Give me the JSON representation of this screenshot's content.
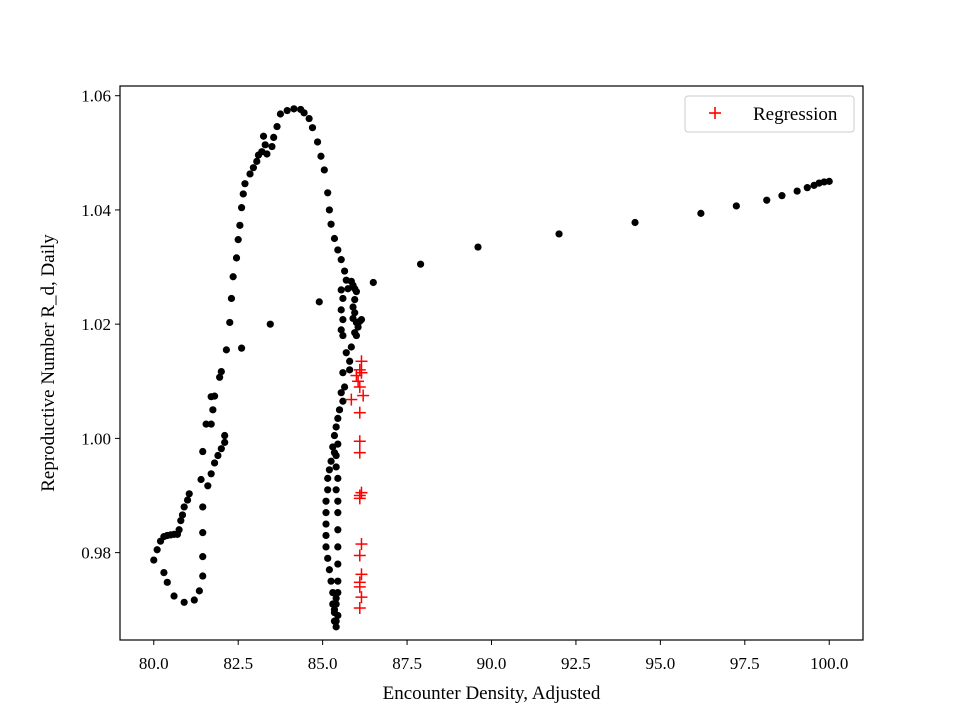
{
  "chart_data": {
    "type": "scatter",
    "title": "",
    "xlabel": "Encounter Density, Adjusted",
    "ylabel": "Reproductive Number R_d, Daily",
    "xlim": [
      79.0,
      101.0
    ],
    "ylim": [
      0.9647,
      1.0617
    ],
    "xticks": [
      80.0,
      82.5,
      85.0,
      87.5,
      90.0,
      92.5,
      95.0,
      97.5,
      100.0
    ],
    "xtick_labels": [
      "80.0",
      "82.5",
      "85.0",
      "87.5",
      "90.0",
      "92.5",
      "95.0",
      "97.5",
      "100.0"
    ],
    "yticks": [
      0.98,
      1.0,
      1.02,
      1.04,
      1.06
    ],
    "ytick_labels": [
      "0.98",
      "1.00",
      "1.02",
      "1.04",
      "1.06"
    ],
    "grid": false,
    "legend": {
      "position": "top-right",
      "entries": [
        {
          "label": "Regression",
          "marker": "+",
          "color": "#ff0000"
        }
      ]
    },
    "series": [
      {
        "marker": "dot",
        "color": "#000000",
        "points": [
          [
            80.0,
            0.9787
          ],
          [
            80.1,
            0.9805
          ],
          [
            80.2,
            0.982
          ],
          [
            80.3,
            0.9828
          ],
          [
            80.4,
            0.983
          ],
          [
            80.5,
            0.9831
          ],
          [
            80.6,
            0.9832
          ],
          [
            80.7,
            0.9832
          ],
          [
            80.75,
            0.984
          ],
          [
            80.8,
            0.9856
          ],
          [
            80.85,
            0.9866
          ],
          [
            80.9,
            0.988
          ],
          [
            81.0,
            0.9892
          ],
          [
            81.05,
            0.9903
          ],
          [
            80.3,
            0.9765
          ],
          [
            80.4,
            0.9748
          ],
          [
            80.6,
            0.9724
          ],
          [
            80.9,
            0.9713
          ],
          [
            81.2,
            0.9717
          ],
          [
            81.35,
            0.9733
          ],
          [
            81.45,
            0.9759
          ],
          [
            81.45,
            0.9793
          ],
          [
            81.45,
            0.9835
          ],
          [
            81.45,
            0.988
          ],
          [
            81.4,
            0.9928
          ],
          [
            81.45,
            0.9977
          ],
          [
            81.6,
            0.9917
          ],
          [
            81.7,
            0.9938
          ],
          [
            81.8,
            0.9957
          ],
          [
            81.9,
            0.997
          ],
          [
            82.0,
            0.9982
          ],
          [
            82.1,
            0.9993
          ],
          [
            82.1,
            1.0005
          ],
          [
            81.55,
            1.0025
          ],
          [
            81.7,
            1.0025
          ],
          [
            81.75,
            1.005
          ],
          [
            81.7,
            1.0073
          ],
          [
            81.8,
            1.0074
          ],
          [
            81.95,
            1.0107
          ],
          [
            82.0,
            1.0117
          ],
          [
            82.15,
            1.0155
          ],
          [
            82.25,
            1.0203
          ],
          [
            82.3,
            1.0245
          ],
          [
            82.35,
            1.0283
          ],
          [
            82.45,
            1.0316
          ],
          [
            82.5,
            1.0348
          ],
          [
            82.55,
            1.0373
          ],
          [
            82.6,
            1.0404
          ],
          [
            82.65,
            1.0428
          ],
          [
            82.7,
            1.0446
          ],
          [
            82.85,
            1.0463
          ],
          [
            82.95,
            1.0474
          ],
          [
            83.05,
            1.0485
          ],
          [
            83.1,
            1.0496
          ],
          [
            83.2,
            1.0502
          ],
          [
            83.3,
            1.0514
          ],
          [
            83.35,
            1.0498
          ],
          [
            83.25,
            1.0529
          ],
          [
            83.5,
            1.0511
          ],
          [
            83.55,
            1.0527
          ],
          [
            83.65,
            1.0546
          ],
          [
            83.75,
            1.0568
          ],
          [
            83.95,
            1.0574
          ],
          [
            84.15,
            1.0577
          ],
          [
            84.35,
            1.0576
          ],
          [
            84.45,
            1.057
          ],
          [
            84.6,
            1.056
          ],
          [
            84.7,
            1.0544
          ],
          [
            84.85,
            1.0519
          ],
          [
            84.95,
            1.0494
          ],
          [
            85.05,
            1.047
          ],
          [
            85.15,
            1.043
          ],
          [
            85.2,
            1.04
          ],
          [
            85.25,
            1.0375
          ],
          [
            85.35,
            1.035
          ],
          [
            85.45,
            1.033
          ],
          [
            85.55,
            1.0313
          ],
          [
            85.65,
            1.0293
          ],
          [
            85.7,
            1.0277
          ],
          [
            85.75,
            1.0262
          ],
          [
            86.5,
            1.0273
          ],
          [
            87.9,
            1.0305
          ],
          [
            89.6,
            1.0335
          ],
          [
            92.0,
            1.0358
          ],
          [
            94.25,
            1.0378
          ],
          [
            96.2,
            1.0394
          ],
          [
            97.25,
            1.0407
          ],
          [
            98.15,
            1.0417
          ],
          [
            98.6,
            1.0425
          ],
          [
            99.05,
            1.0433
          ],
          [
            99.35,
            1.0439
          ],
          [
            99.55,
            1.0443
          ],
          [
            99.7,
            1.0447
          ],
          [
            99.85,
            1.0449
          ],
          [
            100.0,
            1.045
          ],
          [
            83.45,
            1.02
          ],
          [
            82.6,
            1.0158
          ],
          [
            84.9,
            1.0239
          ],
          [
            85.55,
            1.026
          ],
          [
            85.6,
            1.0245
          ],
          [
            85.55,
            1.0225
          ],
          [
            85.6,
            1.0208
          ],
          [
            85.55,
            1.019
          ],
          [
            85.6,
            1.018
          ],
          [
            85.85,
            1.0275
          ],
          [
            85.9,
            1.0268
          ],
          [
            85.95,
            1.0262
          ],
          [
            86.0,
            1.0257
          ],
          [
            85.95,
            1.0243
          ],
          [
            85.9,
            1.023
          ],
          [
            85.95,
            1.022
          ],
          [
            85.9,
            1.021
          ],
          [
            86.0,
            1.0203
          ],
          [
            86.1,
            1.0205
          ],
          [
            86.15,
            1.0208
          ],
          [
            86.05,
            1.0195
          ],
          [
            85.95,
            1.0185
          ],
          [
            86.0,
            1.018
          ],
          [
            85.85,
            1.016
          ],
          [
            85.7,
            1.015
          ],
          [
            85.8,
            1.0135
          ],
          [
            85.8,
            1.012
          ],
          [
            85.6,
            1.0115
          ],
          [
            85.65,
            1.009
          ],
          [
            85.55,
            1.008
          ],
          [
            85.6,
            1.0065
          ],
          [
            85.5,
            1.005
          ],
          [
            85.45,
            1.0035
          ],
          [
            85.4,
            1.002
          ],
          [
            85.35,
            1.0005
          ],
          [
            85.3,
            0.9985
          ],
          [
            85.35,
            0.9975
          ],
          [
            85.25,
            0.996
          ],
          [
            85.2,
            0.9945
          ],
          [
            85.15,
            0.993
          ],
          [
            85.15,
            0.991
          ],
          [
            85.1,
            0.989
          ],
          [
            85.1,
            0.987
          ],
          [
            85.1,
            0.985
          ],
          [
            85.1,
            0.983
          ],
          [
            85.1,
            0.981
          ],
          [
            85.15,
            0.979
          ],
          [
            85.2,
            0.977
          ],
          [
            85.25,
            0.975
          ],
          [
            85.3,
            0.973
          ],
          [
            85.3,
            0.971
          ],
          [
            85.35,
            0.9695
          ],
          [
            85.35,
            0.968
          ],
          [
            85.4,
            0.967
          ],
          [
            85.45,
            0.969
          ],
          [
            85.4,
            0.971
          ],
          [
            85.45,
            0.973
          ],
          [
            85.45,
            0.975
          ],
          [
            85.45,
            0.978
          ],
          [
            85.45,
            0.981
          ],
          [
            85.45,
            0.984
          ],
          [
            85.45,
            0.987
          ],
          [
            85.45,
            0.989
          ],
          [
            85.4,
            0.991
          ],
          [
            85.45,
            0.993
          ],
          [
            85.4,
            0.995
          ],
          [
            85.4,
            0.997
          ],
          [
            85.45,
            0.999
          ],
          [
            85.4,
            0.968
          ],
          [
            85.35,
            0.97
          ],
          [
            85.4,
            0.972
          ]
        ]
      },
      {
        "name": "Regression",
        "marker": "+",
        "color": "#ff0000",
        "points": [
          [
            86.15,
            1.0135
          ],
          [
            86.1,
            1.012
          ],
          [
            86.15,
            1.0115
          ],
          [
            86.0,
            1.011
          ],
          [
            86.05,
            1.01
          ],
          [
            86.1,
            1.009
          ],
          [
            86.2,
            1.0075
          ],
          [
            85.85,
            1.0068
          ],
          [
            86.1,
            1.0045
          ],
          [
            86.1,
            0.9995
          ],
          [
            86.1,
            0.9975
          ],
          [
            86.15,
            0.9905
          ],
          [
            86.1,
            0.99
          ],
          [
            86.1,
            0.9895
          ],
          [
            86.15,
            0.9815
          ],
          [
            86.1,
            0.9795
          ],
          [
            86.15,
            0.9762
          ],
          [
            86.1,
            0.9748
          ],
          [
            86.1,
            0.974
          ],
          [
            86.15,
            0.9722
          ],
          [
            86.1,
            0.9703
          ]
        ]
      }
    ]
  }
}
